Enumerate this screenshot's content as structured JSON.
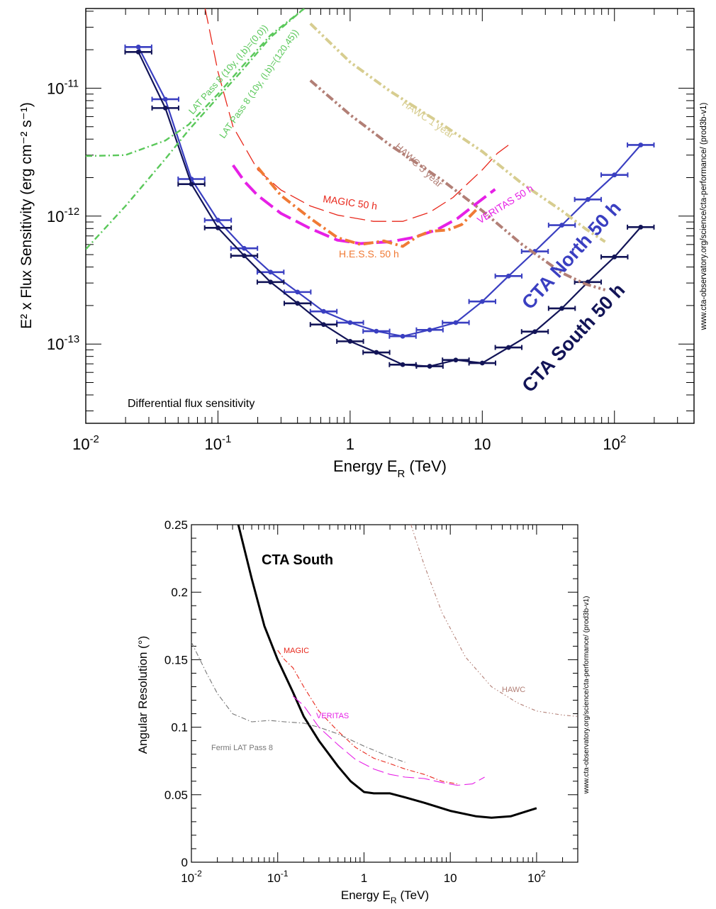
{
  "chart_data": [
    {
      "type": "line",
      "title": "Differential flux sensitivity",
      "xlabel": "Energy E",
      "xlabel_sub": "R",
      "xlabel_unit": "(TeV)",
      "ylabel": "E² x Flux Sensitivity (erg cm⁻² s⁻¹)",
      "xscale": "log",
      "yscale": "log",
      "xlim": [
        0.01,
        400
      ],
      "ylim": [
        2.4e-14,
        4.2e-11
      ],
      "x_ticks": [
        {
          "v": 0.01,
          "base": "10",
          "exp": "-2"
        },
        {
          "v": 0.1,
          "base": "10",
          "exp": "-1"
        },
        {
          "v": 1,
          "base": "1",
          "exp": ""
        },
        {
          "v": 10,
          "base": "10",
          "exp": ""
        },
        {
          "v": 100,
          "base": "10",
          "exp": "2"
        }
      ],
      "y_ticks": [
        {
          "v": 1e-13,
          "base": "10",
          "exp": "-13"
        },
        {
          "v": 1e-12,
          "base": "10",
          "exp": "-12"
        },
        {
          "v": 1e-11,
          "base": "10",
          "exp": "-11"
        }
      ],
      "side_note": "www.cta-observatory.org/science/cta-performance/ (prod3b-v1)",
      "series": [
        {
          "name": "CTA North 50 h",
          "color": "#3a3fc1",
          "style": "markers-errbars",
          "x": [
            0.025,
            0.04,
            0.063,
            0.1,
            0.158,
            0.25,
            0.4,
            0.63,
            1.0,
            1.58,
            2.5,
            4.0,
            6.3,
            10,
            15.8,
            25,
            40,
            63,
            100,
            158
          ],
          "y": [
            2.1e-11,
            8.2e-12,
            1.95e-12,
            9.3e-13,
            5.6e-13,
            3.65e-13,
            2.55e-13,
            1.8e-13,
            1.47e-13,
            1.26e-13,
            1.15e-13,
            1.29e-13,
            1.47e-13,
            2.15e-13,
            3.4e-13,
            5.3e-13,
            8.5e-13,
            1.35e-12,
            2.1e-12,
            3.6e-12
          ]
        },
        {
          "name": "CTA South 50 h",
          "color": "#121457",
          "style": "markers-errbars",
          "x": [
            0.025,
            0.04,
            0.063,
            0.1,
            0.158,
            0.25,
            0.4,
            0.63,
            1.0,
            1.58,
            2.5,
            4.0,
            6.3,
            10,
            15.8,
            25,
            40,
            63,
            100,
            158
          ],
          "y": [
            1.92e-11,
            7e-12,
            1.78e-12,
            8.1e-13,
            4.9e-13,
            3.05e-13,
            2.08e-13,
            1.42e-13,
            1.05e-13,
            8.6e-14,
            6.9e-14,
            6.7e-14,
            7.5e-14,
            7.1e-14,
            9.4e-14,
            1.25e-13,
            1.9e-13,
            3.05e-13,
            4.8e-13,
            8.2e-13
          ]
        },
        {
          "name": "MAGIC 50 h",
          "color": "#e8271b",
          "style": "long-dash",
          "x": [
            0.08,
            0.1,
            0.13,
            0.2,
            0.3,
            0.5,
            0.8,
            1.5,
            2.5,
            4,
            6,
            8,
            10,
            13,
            15.8
          ],
          "y": [
            4.2e-11,
            1.35e-11,
            5e-12,
            2.3e-12,
            1.6e-12,
            1.2e-12,
            1.02e-12,
            9.1e-13,
            9.1e-13,
            1.07e-12,
            1.4e-12,
            1.85e-12,
            2.3e-12,
            3.1e-12,
            3.6e-12
          ]
        },
        {
          "name": "VERITAS 50 h",
          "color": "#e620e6",
          "style": "dash-bold",
          "x": [
            0.13,
            0.16,
            0.2,
            0.3,
            0.5,
            0.8,
            1.2,
            2,
            3,
            4.5,
            6.5,
            9,
            12.5
          ],
          "y": [
            2.5e-12,
            1.85e-12,
            1.45e-12,
            1.05e-12,
            8e-13,
            6.5e-13,
            6.1e-13,
            6.3e-13,
            6.8e-13,
            7.8e-13,
            9.6e-13,
            1.25e-12,
            1.62e-12
          ]
        },
        {
          "name": "H.E.S.S. 50 h",
          "color": "#f07a35",
          "style": "dashdot-bold",
          "x": [
            0.2,
            0.3,
            0.5,
            0.8,
            1.2,
            1.8,
            2.5,
            3.2,
            4.0,
            5.5,
            7,
            9
          ],
          "y": [
            2.4e-12,
            1.45e-12,
            9.6e-13,
            6.8e-13,
            6e-13,
            6.4e-13,
            5.8e-13,
            6.9e-13,
            7.6e-13,
            7.8e-13,
            8.6e-13,
            1.12e-12
          ]
        },
        {
          "name": "HAWC 1 year",
          "color": "#d7cd90",
          "style": "dashdotdot-bold",
          "x": [
            0.5,
            1,
            2,
            5,
            10,
            20,
            40,
            60,
            85
          ],
          "y": [
            3.2e-11,
            1.6e-11,
            9.5e-12,
            5.2e-12,
            3.2e-12,
            1.8e-12,
            1.1e-12,
            8e-13,
            6.3e-13
          ]
        },
        {
          "name": "HAWC 5 year",
          "color": "#b27f76",
          "style": "dashdotdot-bold",
          "x": [
            0.5,
            1,
            2,
            5,
            10,
            20,
            40,
            60,
            85
          ],
          "y": [
            1.15e-11,
            6.2e-12,
            3.6e-12,
            1.9e-12,
            1.1e-12,
            6e-13,
            3.6e-13,
            2.95e-13,
            2.65e-13
          ]
        },
        {
          "name": "LAT Pass 8 (10y, (l,b)=(0,0))",
          "color": "#5ac85a",
          "style": "dashdot",
          "x": [
            0.01,
            0.02,
            0.04,
            0.06,
            0.1,
            0.15,
            0.25,
            0.45
          ],
          "y": [
            2.95e-12,
            3e-12,
            3.9e-12,
            5.2e-12,
            9e-12,
            1.45e-11,
            2.6e-11,
            4.2e-11
          ]
        },
        {
          "name": "LAT Pass 8 (10y, (l,b)=(120,45))",
          "color": "#5ac85a",
          "style": "dashdot",
          "x": [
            0.01,
            0.02,
            0.04,
            0.06,
            0.1,
            0.15,
            0.25,
            0.45
          ],
          "y": [
            5.5e-13,
            1.2e-12,
            2.8e-12,
            4.7e-12,
            8.5e-12,
            1.35e-11,
            2.5e-11,
            4.2e-11
          ]
        }
      ],
      "annotations": [
        {
          "text": "CTA North 50 h",
          "series": "CTA North 50 h"
        },
        {
          "text": "CTA South 50 h",
          "series": "CTA South 50 h"
        },
        {
          "text": "MAGIC 50 h",
          "series": "MAGIC 50 h"
        },
        {
          "text": "VERITAS 50 h",
          "series": "VERITAS 50 h"
        },
        {
          "text": "H.E.S.S. 50 h",
          "series": "H.E.S.S. 50 h"
        },
        {
          "text": "HAWC 1 year",
          "series": "HAWC 1 year"
        },
        {
          "text": "HAWC 5 year",
          "series": "HAWC 5 year"
        },
        {
          "text": "LAT Pass 8 (10y, (l,b)=(0,0))",
          "series": "LAT Pass 8 (10y, (l,b)=(0,0))"
        },
        {
          "text": "LAT Pass 8 (10y, (l,b)=(120,45))",
          "series": "LAT Pass 8 (10y, (l,b)=(120,45))"
        }
      ]
    },
    {
      "type": "line",
      "title": "CTA South",
      "xlabel": "Energy E",
      "xlabel_sub": "R",
      "xlabel_unit": "(TeV)",
      "ylabel": "Angular Resolution (°)",
      "xscale": "log",
      "yscale": "linear",
      "xlim": [
        0.01,
        300
      ],
      "ylim": [
        0,
        0.25
      ],
      "x_ticks": [
        {
          "v": 0.01,
          "base": "10",
          "exp": "-2"
        },
        {
          "v": 0.1,
          "base": "10",
          "exp": "-1"
        },
        {
          "v": 1,
          "base": "1",
          "exp": ""
        },
        {
          "v": 10,
          "base": "10",
          "exp": ""
        },
        {
          "v": 100,
          "base": "10",
          "exp": "2"
        }
      ],
      "y_ticks": [
        {
          "v": 0,
          "label": "0"
        },
        {
          "v": 0.05,
          "label": "0.05"
        },
        {
          "v": 0.1,
          "label": "0.1"
        },
        {
          "v": 0.15,
          "label": "0.15"
        },
        {
          "v": 0.2,
          "label": "0.2"
        },
        {
          "v": 0.25,
          "label": "0.25"
        }
      ],
      "side_note": "www.cta-observatory.org/science/cta-performance/ (prod3b-v1)",
      "series": [
        {
          "name": "CTA South",
          "color": "#000000",
          "style": "solid-thick",
          "x": [
            0.035,
            0.05,
            0.07,
            0.1,
            0.15,
            0.2,
            0.3,
            0.5,
            0.7,
            1.0,
            1.3,
            2.0,
            3.0,
            5.0,
            10,
            20,
            30,
            50,
            100
          ],
          "y": [
            0.25,
            0.21,
            0.175,
            0.15,
            0.126,
            0.108,
            0.09,
            0.071,
            0.06,
            0.052,
            0.051,
            0.051,
            0.048,
            0.044,
            0.038,
            0.034,
            0.033,
            0.034,
            0.04
          ]
        },
        {
          "name": "MAGIC",
          "color": "#e8271b",
          "style": "dashdot",
          "x": [
            0.1,
            0.12,
            0.15,
            0.2,
            0.3,
            0.5,
            0.8,
            1.3,
            2,
            3,
            5,
            8,
            12
          ],
          "y": [
            0.157,
            0.15,
            0.144,
            0.13,
            0.112,
            0.097,
            0.085,
            0.077,
            0.073,
            0.069,
            0.065,
            0.06,
            0.058
          ]
        },
        {
          "name": "VERITAS",
          "color": "#e620e6",
          "style": "long-dash",
          "x": [
            0.15,
            0.2,
            0.3,
            0.5,
            0.8,
            1.3,
            2,
            3,
            5,
            8,
            12,
            18,
            25
          ],
          "y": [
            0.123,
            0.116,
            0.1,
            0.087,
            0.076,
            0.069,
            0.065,
            0.063,
            0.062,
            0.059,
            0.057,
            0.058,
            0.063
          ]
        },
        {
          "name": "Fermi LAT Pass 8",
          "color": "#777777",
          "style": "dashdot",
          "x": [
            0.01,
            0.015,
            0.02,
            0.03,
            0.05,
            0.08,
            0.12,
            0.2,
            0.3,
            0.5,
            1.0,
            2.0,
            3.0
          ],
          "y": [
            0.163,
            0.14,
            0.125,
            0.11,
            0.104,
            0.105,
            0.104,
            0.103,
            0.1,
            0.095,
            0.086,
            0.078,
            0.074
          ]
        },
        {
          "name": "HAWC",
          "color": "#b27f76",
          "style": "dashdotdot",
          "x": [
            3.5,
            5,
            8,
            15,
            30,
            60,
            100,
            200,
            300
          ],
          "y": [
            0.25,
            0.22,
            0.185,
            0.152,
            0.13,
            0.118,
            0.112,
            0.109,
            0.108
          ]
        }
      ],
      "annotations": [
        {
          "text": "MAGIC",
          "series": "MAGIC"
        },
        {
          "text": "VERITAS",
          "series": "VERITAS"
        },
        {
          "text": "Fermi LAT Pass 8",
          "series": "Fermi LAT Pass 8"
        },
        {
          "text": "HAWC",
          "series": "HAWC"
        }
      ]
    }
  ]
}
